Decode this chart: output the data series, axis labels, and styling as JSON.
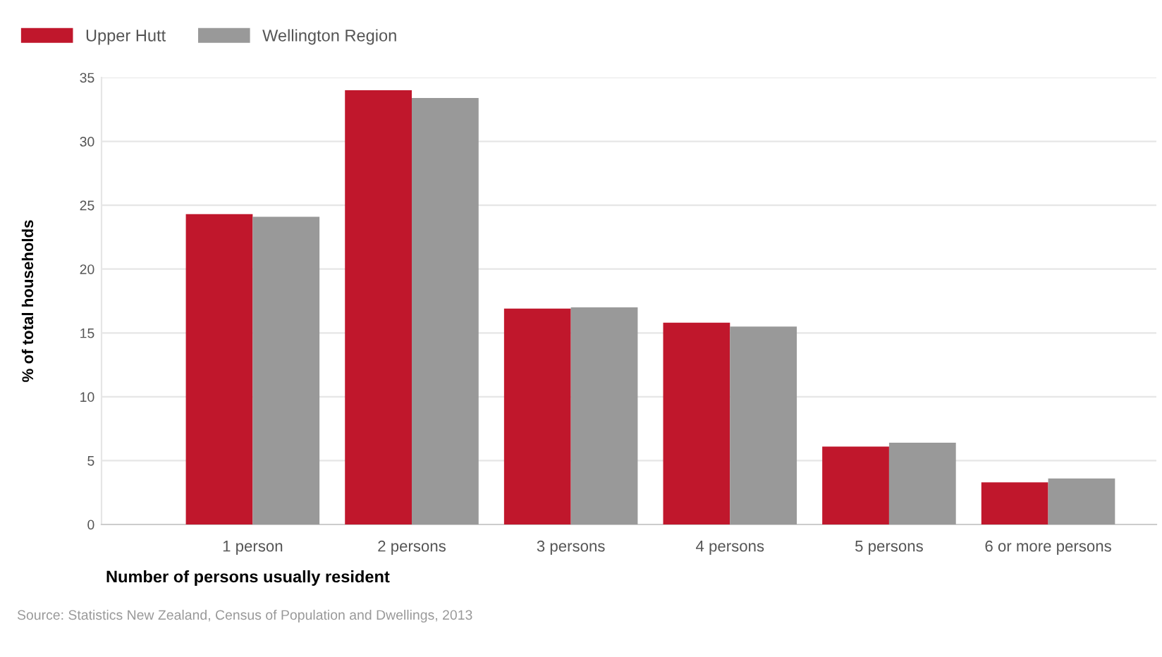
{
  "chart_data": {
    "type": "bar",
    "categories": [
      "1 person",
      "2 persons",
      "3 persons",
      "4 persons",
      "5 persons",
      "6 or more persons"
    ],
    "series": [
      {
        "name": "Upper Hutt",
        "color": "#c0172c",
        "values": [
          24.3,
          34.0,
          16.9,
          15.8,
          6.1,
          3.3
        ]
      },
      {
        "name": "Wellington Region",
        "color": "#999999",
        "values": [
          24.1,
          33.4,
          17.0,
          15.5,
          6.4,
          3.6
        ]
      }
    ],
    "xlabel": "Number of persons usually resident",
    "ylabel": "% of total households",
    "ylim": [
      0,
      35
    ],
    "yticks": [
      0,
      5,
      10,
      15,
      20,
      25,
      30,
      35
    ],
    "grid": "y",
    "legend": "top left",
    "annotations": [
      "Source: Statistics New Zealand, Census of Population and Dwellings, 2013"
    ]
  }
}
